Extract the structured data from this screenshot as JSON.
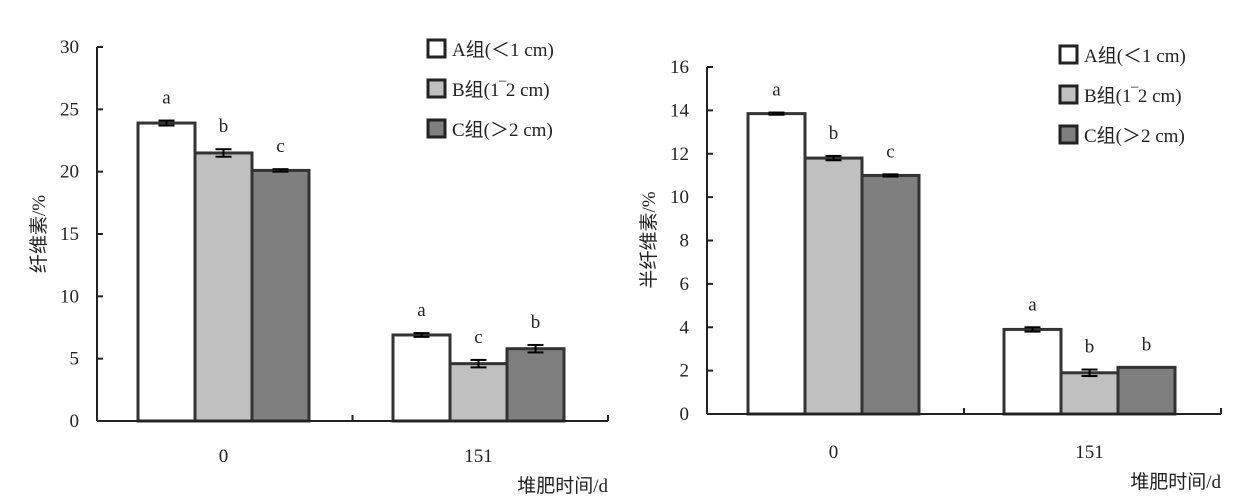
{
  "chart_data": [
    {
      "type": "bar",
      "title": "",
      "ylabel": "纤维素/%",
      "xlabel": "堆肥时间/d",
      "categories": [
        "0",
        "151"
      ],
      "ylim": [
        0,
        30
      ],
      "yticks": [
        "0",
        "5",
        "10",
        "15",
        "20",
        "25",
        "30"
      ],
      "grid": false,
      "legend_position": "top-right",
      "series": [
        {
          "name": "A组(＜1 cm)",
          "color": "#ffffff",
          "values": [
            23.9,
            6.9
          ],
          "errors": [
            0.2,
            0.15
          ],
          "labels": [
            "a",
            "a"
          ]
        },
        {
          "name": "B组(1‾2 cm)",
          "color": "#c0c0c0",
          "values": [
            21.5,
            4.6
          ],
          "errors": [
            0.3,
            0.3
          ],
          "labels": [
            "b",
            "c"
          ]
        },
        {
          "name": "C组(＞2 cm)",
          "color": "#7f7f7f",
          "values": [
            20.1,
            5.8
          ],
          "errors": [
            0.1,
            0.3
          ],
          "labels": [
            "c",
            "b"
          ]
        }
      ]
    },
    {
      "type": "bar",
      "title": "",
      "ylabel": "半纤维素/%",
      "xlabel": "堆肥时间/d",
      "categories": [
        "0",
        "151"
      ],
      "ylim": [
        0,
        16
      ],
      "yticks": [
        "0",
        "2",
        "4",
        "6",
        "8",
        "10",
        "12",
        "14",
        "16"
      ],
      "grid": false,
      "legend_position": "top-right",
      "series": [
        {
          "name": "A组(＜1 cm)",
          "color": "#ffffff",
          "values": [
            13.85,
            3.9
          ],
          "errors": [
            0.05,
            0.1
          ],
          "labels": [
            "a",
            "a"
          ]
        },
        {
          "name": "B组(1‾2 cm)",
          "color": "#c0c0c0",
          "values": [
            11.8,
            1.9
          ],
          "errors": [
            0.1,
            0.15
          ],
          "labels": [
            "b",
            "b"
          ]
        },
        {
          "name": "C组(＞2 cm)",
          "color": "#7f7f7f",
          "values": [
            11.0,
            2.15
          ],
          "errors": [
            0.05,
            0.0
          ],
          "labels": [
            "c",
            "b"
          ]
        }
      ]
    }
  ]
}
